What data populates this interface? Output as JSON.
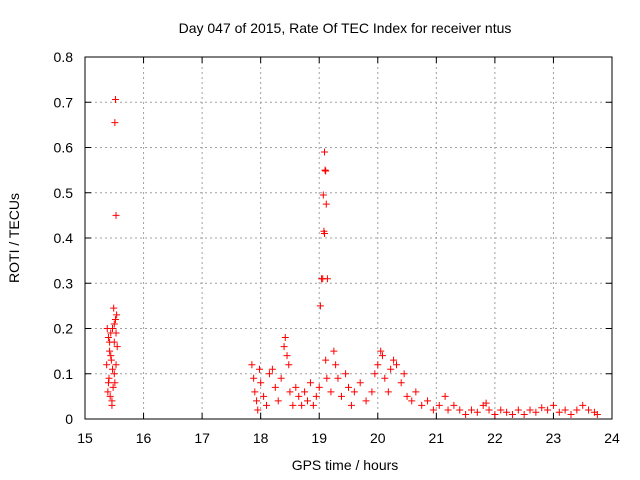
{
  "chart_data": {
    "type": "scatter",
    "title": "Day 047 of 2015, Rate Of TEC Index for receiver ntus",
    "xlabel": "GPS time / hours",
    "ylabel": "ROTI / TECUs",
    "xlim": [
      15,
      24
    ],
    "ylim": [
      0,
      0.8
    ],
    "xticks": [
      "15",
      "16",
      "17",
      "18",
      "19",
      "20",
      "21",
      "22",
      "23",
      "24"
    ],
    "yticks": [
      "0",
      "0.1",
      "0.2",
      "0.3",
      "0.4",
      "0.5",
      "0.6",
      "0.7",
      "0.8"
    ],
    "grid": true,
    "marker": "+",
    "color": "#ff0000",
    "points": [
      [
        15.52,
        0.706
      ],
      [
        15.51,
        0.655
      ],
      [
        15.53,
        0.45
      ],
      [
        15.38,
        0.2
      ],
      [
        15.4,
        0.18
      ],
      [
        15.42,
        0.15
      ],
      [
        15.45,
        0.13
      ],
      [
        15.47,
        0.11
      ],
      [
        15.5,
        0.17
      ],
      [
        15.52,
        0.22
      ],
      [
        15.54,
        0.23
      ],
      [
        15.49,
        0.245
      ],
      [
        15.44,
        0.19
      ],
      [
        15.41,
        0.09
      ],
      [
        15.39,
        0.06
      ],
      [
        15.43,
        0.05
      ],
      [
        15.46,
        0.04
      ],
      [
        15.48,
        0.07
      ],
      [
        15.5,
        0.1
      ],
      [
        15.53,
        0.12
      ],
      [
        15.55,
        0.16
      ],
      [
        15.37,
        0.12
      ],
      [
        15.4,
        0.08
      ],
      [
        15.46,
        0.03
      ],
      [
        15.51,
        0.08
      ],
      [
        15.44,
        0.14
      ],
      [
        15.42,
        0.17
      ],
      [
        15.47,
        0.2
      ],
      [
        15.5,
        0.21
      ],
      [
        15.53,
        0.19
      ],
      [
        17.85,
        0.12
      ],
      [
        17.88,
        0.09
      ],
      [
        17.9,
        0.06
      ],
      [
        17.93,
        0.04
      ],
      [
        17.95,
        0.02
      ],
      [
        17.98,
        0.11
      ],
      [
        18.0,
        0.08
      ],
      [
        18.05,
        0.05
      ],
      [
        18.1,
        0.03
      ],
      [
        18.15,
        0.1
      ],
      [
        18.2,
        0.11
      ],
      [
        18.25,
        0.07
      ],
      [
        18.3,
        0.04
      ],
      [
        18.35,
        0.09
      ],
      [
        18.4,
        0.16
      ],
      [
        18.42,
        0.18
      ],
      [
        18.45,
        0.14
      ],
      [
        18.48,
        0.12
      ],
      [
        18.5,
        0.06
      ],
      [
        18.55,
        0.03
      ],
      [
        18.6,
        0.07
      ],
      [
        18.65,
        0.05
      ],
      [
        18.7,
        0.03
      ],
      [
        18.75,
        0.06
      ],
      [
        18.8,
        0.04
      ],
      [
        18.85,
        0.08
      ],
      [
        18.9,
        0.03
      ],
      [
        18.95,
        0.05
      ],
      [
        19.0,
        0.07
      ],
      [
        19.02,
        0.25
      ],
      [
        19.04,
        0.31
      ],
      [
        19.06,
        0.31
      ],
      [
        19.08,
        0.415
      ],
      [
        19.09,
        0.41
      ],
      [
        19.07,
        0.495
      ],
      [
        19.1,
        0.55
      ],
      [
        19.11,
        0.548
      ],
      [
        19.09,
        0.59
      ],
      [
        19.12,
        0.475
      ],
      [
        19.14,
        0.31
      ],
      [
        19.11,
        0.13
      ],
      [
        19.13,
        0.09
      ],
      [
        19.2,
        0.06
      ],
      [
        19.25,
        0.15
      ],
      [
        19.28,
        0.12
      ],
      [
        19.32,
        0.09
      ],
      [
        19.38,
        0.05
      ],
      [
        19.45,
        0.1
      ],
      [
        19.5,
        0.07
      ],
      [
        19.55,
        0.03
      ],
      [
        19.6,
        0.06
      ],
      [
        19.7,
        0.08
      ],
      [
        19.8,
        0.04
      ],
      [
        19.9,
        0.06
      ],
      [
        19.95,
        0.1
      ],
      [
        20.0,
        0.12
      ],
      [
        20.05,
        0.15
      ],
      [
        20.08,
        0.14
      ],
      [
        20.12,
        0.09
      ],
      [
        20.18,
        0.06
      ],
      [
        20.22,
        0.11
      ],
      [
        20.27,
        0.13
      ],
      [
        20.32,
        0.12
      ],
      [
        20.4,
        0.08
      ],
      [
        20.45,
        0.1
      ],
      [
        20.5,
        0.05
      ],
      [
        20.58,
        0.04
      ],
      [
        20.65,
        0.06
      ],
      [
        20.75,
        0.03
      ],
      [
        20.85,
        0.04
      ],
      [
        20.95,
        0.02
      ],
      [
        21.05,
        0.03
      ],
      [
        21.15,
        0.05
      ],
      [
        21.2,
        0.02
      ],
      [
        21.3,
        0.03
      ],
      [
        21.4,
        0.02
      ],
      [
        21.5,
        0.01
      ],
      [
        21.6,
        0.02
      ],
      [
        21.7,
        0.015
      ],
      [
        21.8,
        0.03
      ],
      [
        21.85,
        0.035
      ],
      [
        21.9,
        0.02
      ],
      [
        22.0,
        0.01
      ],
      [
        22.1,
        0.02
      ],
      [
        22.2,
        0.015
      ],
      [
        22.3,
        0.01
      ],
      [
        22.4,
        0.02
      ],
      [
        22.5,
        0.01
      ],
      [
        22.6,
        0.02
      ],
      [
        22.7,
        0.015
      ],
      [
        22.8,
        0.025
      ],
      [
        22.9,
        0.02
      ],
      [
        23.0,
        0.03
      ],
      [
        23.1,
        0.015
      ],
      [
        23.2,
        0.02
      ],
      [
        23.3,
        0.01
      ],
      [
        23.4,
        0.02
      ],
      [
        23.5,
        0.03
      ],
      [
        23.6,
        0.02
      ],
      [
        23.7,
        0.015
      ],
      [
        23.75,
        0.01
      ]
    ]
  }
}
